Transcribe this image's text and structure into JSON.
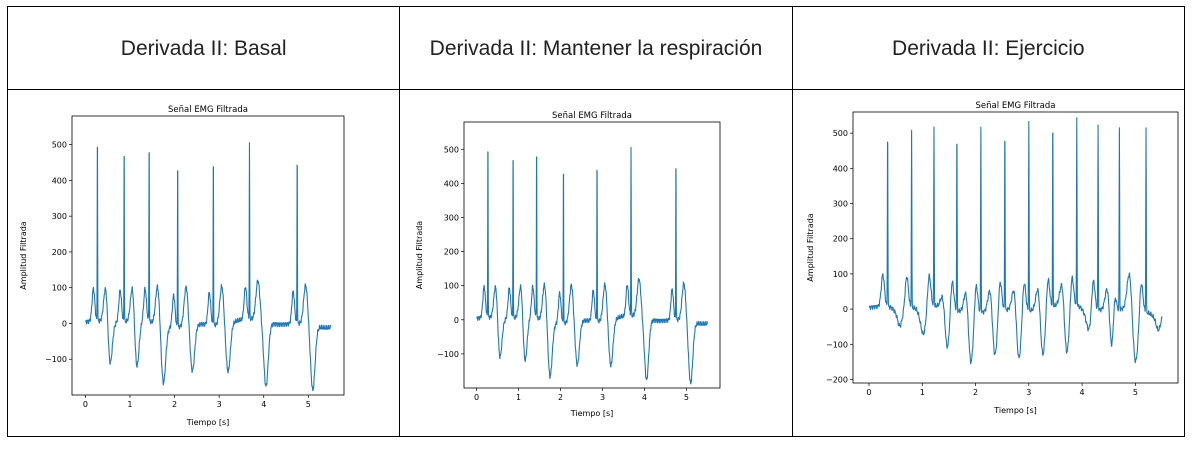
{
  "table": {
    "headers": [
      "Derivada II: Basal",
      "Derivada II: Mantener la respiración",
      "Derivada II: Ejercicio"
    ]
  },
  "colors": {
    "line": "#1f77b4",
    "axes": "#000000",
    "background": "#ffffff"
  },
  "chart_data": [
    {
      "type": "line",
      "title": "Señal EMG Filtrada",
      "xlabel": "Tiempo [s]",
      "ylabel": "Amplitud Filtrada",
      "xlim": [
        -0.3,
        5.8
      ],
      "ylim": [
        -200,
        580
      ],
      "xticks": [
        0,
        1,
        2,
        3,
        4,
        5
      ],
      "yticks": [
        -100,
        0,
        100,
        200,
        300,
        400,
        500
      ],
      "beats": [
        {
          "t": 0.27,
          "peak": 540
        },
        {
          "t": 0.87,
          "peak": 510
        },
        {
          "t": 1.43,
          "peak": 522
        },
        {
          "t": 2.07,
          "peak": 488
        },
        {
          "t": 2.87,
          "peak": 488
        },
        {
          "t": 3.68,
          "peak": 492
        },
        {
          "t": 4.75,
          "peak": 488
        }
      ],
      "troughs": [
        {
          "t": 0.55,
          "v": -105
        },
        {
          "t": 1.15,
          "v": -120
        },
        {
          "t": 1.75,
          "v": -140
        },
        {
          "t": 2.4,
          "v": -110
        },
        {
          "t": 3.2,
          "v": -115
        },
        {
          "t": 4.05,
          "v": -160
        },
        {
          "t": 5.1,
          "v": -160
        }
      ]
    },
    {
      "type": "line",
      "title": "Señal EMG Filtrada",
      "xlabel": "Tiempo [s]",
      "ylabel": "Amplitud Filtrada",
      "xlim": [
        -0.3,
        5.8
      ],
      "ylim": [
        -200,
        580
      ],
      "xticks": [
        0,
        1,
        2,
        3,
        4,
        5
      ],
      "yticks": [
        -100,
        0,
        100,
        200,
        300,
        400,
        500
      ],
      "beats": [
        {
          "t": 0.27,
          "peak": 540
        },
        {
          "t": 0.87,
          "peak": 510
        },
        {
          "t": 1.43,
          "peak": 522
        },
        {
          "t": 2.07,
          "peak": 488
        },
        {
          "t": 2.87,
          "peak": 488
        },
        {
          "t": 3.68,
          "peak": 492
        },
        {
          "t": 4.75,
          "peak": 488
        }
      ],
      "troughs": [
        {
          "t": 0.55,
          "v": -105
        },
        {
          "t": 1.15,
          "v": -120
        },
        {
          "t": 1.75,
          "v": -140
        },
        {
          "t": 2.4,
          "v": -110
        },
        {
          "t": 3.2,
          "v": -115
        },
        {
          "t": 4.05,
          "v": -160
        },
        {
          "t": 5.1,
          "v": -160
        }
      ]
    },
    {
      "type": "line",
      "title": "Señal EMG Filtrada",
      "xlabel": "Tiempo [s]",
      "ylabel": "Amplitud Filtrada",
      "xlim": [
        -0.3,
        5.8
      ],
      "ylim": [
        -210,
        560
      ],
      "xticks": [
        0,
        1,
        2,
        3,
        4,
        5
      ],
      "yticks": [
        -200,
        -100,
        0,
        100,
        200,
        300,
        400,
        500
      ],
      "beats": [
        {
          "t": 0.35,
          "peak": 520
        },
        {
          "t": 0.8,
          "peak": 505
        },
        {
          "t": 1.22,
          "peak": 510
        },
        {
          "t": 1.65,
          "peak": 515
        },
        {
          "t": 2.1,
          "peak": 522
        },
        {
          "t": 2.55,
          "peak": 530
        },
        {
          "t": 3.0,
          "peak": 540
        },
        {
          "t": 3.45,
          "peak": 535
        },
        {
          "t": 3.9,
          "peak": 530
        },
        {
          "t": 4.3,
          "peak": 520
        },
        {
          "t": 4.7,
          "peak": 515
        },
        {
          "t": 5.2,
          "peak": 528
        }
      ],
      "troughs": [
        {
          "t": 0.55,
          "v": -130
        },
        {
          "t": 1.0,
          "v": -160
        },
        {
          "t": 1.45,
          "v": -150
        },
        {
          "t": 1.9,
          "v": -155
        },
        {
          "t": 2.35,
          "v": -140
        },
        {
          "t": 2.8,
          "v": -150
        },
        {
          "t": 3.25,
          "v": -145
        },
        {
          "t": 3.7,
          "v": -150
        },
        {
          "t": 4.1,
          "v": -140
        },
        {
          "t": 4.55,
          "v": -135
        },
        {
          "t": 5.0,
          "v": -130
        },
        {
          "t": 5.4,
          "v": -125
        }
      ]
    }
  ]
}
